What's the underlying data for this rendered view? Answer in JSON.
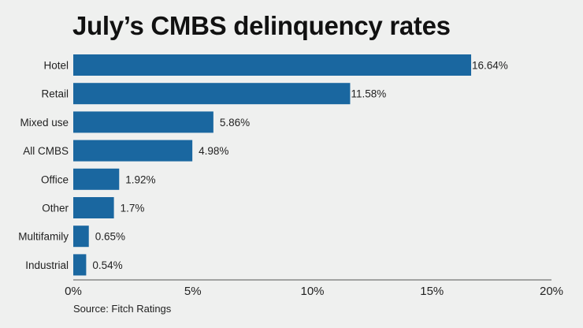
{
  "chart_data": {
    "type": "bar",
    "orientation": "horizontal",
    "title": "July’s CMBS delinquency rates",
    "categories": [
      "Hotel",
      "Retail",
      "Mixed use",
      "All CMBS",
      "Office",
      "Other",
      "Multifamily",
      "Industrial"
    ],
    "values": [
      16.64,
      11.58,
      5.86,
      4.98,
      1.92,
      1.7,
      0.65,
      0.54
    ],
    "data_labels": [
      "16.64%",
      "11.58%",
      "5.86%",
      "4.98%",
      "1.92%",
      "1.7%",
      "0.65%",
      "0.54%"
    ],
    "xlim": [
      0,
      20
    ],
    "xticks": [
      0,
      5,
      10,
      15,
      20
    ],
    "xtick_labels": [
      "0%",
      "5%",
      "10%",
      "15%",
      "20%"
    ],
    "xlabel": "",
    "ylabel": "",
    "grid": false,
    "bar_color": "#1a67a0",
    "source": "Source: Fitch Ratings"
  }
}
